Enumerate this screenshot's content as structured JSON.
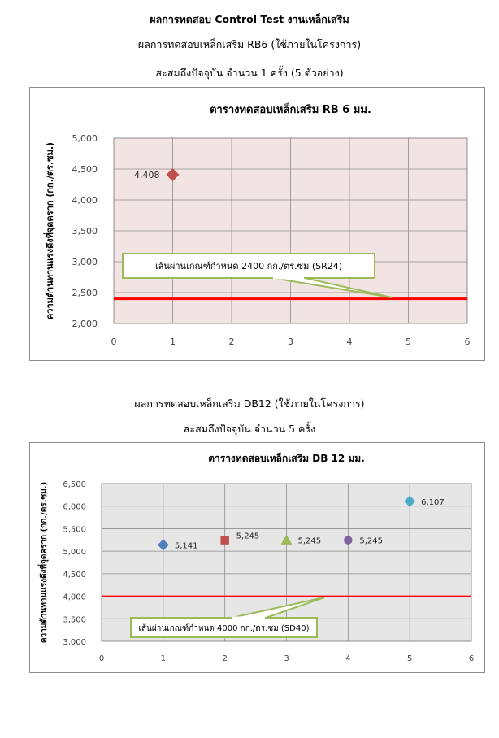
{
  "header": {
    "title": "ผลการทดสอบ Control Test งานเหล็กเสริม",
    "rb6_subtitle": "ผลการทดสอบเหล็กเสริม RB6 (ใช้ภายในโครงการ)",
    "rb6_count": "สะสมถึงปัจจุบัน จำนวน 1 ครั้ง (5 ตัวอย่าง)",
    "db12_subtitle": "ผลการทดสอบเหล็กเสริม DB12 (ใช้ภายในโครงการ)",
    "db12_count": "สะสมถึงปัจจุบัน จำนวน 5 ครั้ง"
  },
  "chart_data": [
    {
      "type": "scatter",
      "title": "ตารางทดสอบเหล็กเสริม RB 6 มม.",
      "xlabel": "",
      "ylabel": "ความต้านทานแรงดึงที่จุดคราก (กก./ตร.ซม.)",
      "xlim": [
        0,
        6
      ],
      "ylim": [
        2000,
        5000
      ],
      "x_ticks": [
        0,
        1,
        2,
        3,
        4,
        5,
        6
      ],
      "x_tick_labels": [
        "0",
        "1",
        "2",
        "3",
        "4",
        "5",
        "6"
      ],
      "y_ticks": [
        2000,
        2500,
        3000,
        3500,
        4000,
        4500,
        5000
      ],
      "y_tick_labels": [
        "2,000",
        "2,500",
        "3,000",
        "3,500",
        "4,000",
        "4,500",
        "5,000"
      ],
      "grid": true,
      "plot_bg": "#f2e4e3",
      "points": [
        {
          "x": 1,
          "y": 4408,
          "label": "4,408",
          "marker": "diamond",
          "color": "#c0504d"
        }
      ],
      "threshold": {
        "y": 2400,
        "color": "#ff0000"
      },
      "callout": {
        "text": "เส้นผ่านเกณฑ์กำหนด 2400 กก./ตร.ซม (SR24)",
        "border_color": "#9bbb59"
      }
    },
    {
      "type": "scatter",
      "title": "ตารางทดสอบเหล็กเสริม DB 12 มม.",
      "xlabel": "",
      "ylabel": "ความต้านทานแรงดึงที่จุดคราก (กก./ตร.ซม.)",
      "xlim": [
        0,
        6
      ],
      "ylim": [
        3000,
        6500
      ],
      "x_ticks": [
        0,
        1,
        2,
        3,
        4,
        5,
        6
      ],
      "x_tick_labels": [
        "0",
        "1",
        "2",
        "3",
        "4",
        "5",
        "6"
      ],
      "y_ticks": [
        3000,
        3500,
        4000,
        4500,
        5000,
        5500,
        6000,
        6500
      ],
      "y_tick_labels": [
        "3,000",
        "3,500",
        "4,000",
        "4,500",
        "5,000",
        "5,500",
        "6,000",
        "6,500"
      ],
      "grid": true,
      "plot_bg": "#e6e6e6",
      "points": [
        {
          "x": 1,
          "y": 5141,
          "label": "5,141",
          "marker": "diamond",
          "color": "#4f81bd"
        },
        {
          "x": 2,
          "y": 5245,
          "label": "5,245",
          "marker": "square",
          "color": "#c0504d"
        },
        {
          "x": 3,
          "y": 5245,
          "label": "5,245",
          "marker": "triangle",
          "color": "#9bbb59"
        },
        {
          "x": 4,
          "y": 5245,
          "label": "5,245",
          "marker": "circle",
          "color": "#8064a2"
        },
        {
          "x": 5,
          "y": 6107,
          "label": "6,107",
          "marker": "diamond",
          "color": "#4bacc6"
        }
      ],
      "threshold": {
        "y": 4000,
        "color": "#ff0000"
      },
      "callout": {
        "text": "เส้นผ่านเกณฑ์กำหนด 4000 กก./ตร.ซม (SD40)",
        "border_color": "#9bbb59"
      }
    }
  ]
}
